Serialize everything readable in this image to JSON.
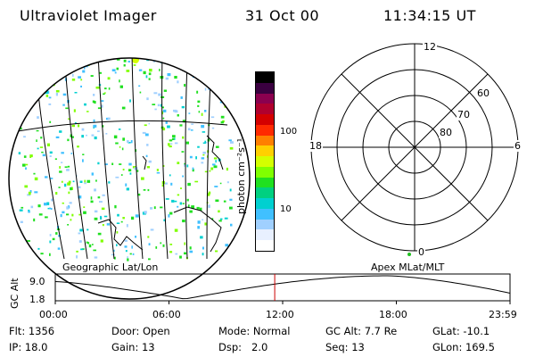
{
  "header": {
    "instrument": "Ultraviolet Imager",
    "date": "31 Oct 00",
    "time": "11:34:15 UT"
  },
  "colorbar": {
    "unit_label": "photon cm⁻²s⁻¹",
    "ticks": [
      "100",
      "10"
    ],
    "colors": [
      "#000000",
      "#3a0040",
      "#8b004f",
      "#b0002e",
      "#d40000",
      "#ff2a00",
      "#ff8000",
      "#ffd000",
      "#d4ff00",
      "#80ff00",
      "#20e020",
      "#00d080",
      "#00d0d0",
      "#40c0ff",
      "#a0d0ff",
      "#e8f0ff",
      "#ffffff"
    ]
  },
  "map_panel": {
    "caption": "Geographic Lat/Lon"
  },
  "polar_panel": {
    "caption": "Apex MLat/MLT",
    "mlt_labels": {
      "top": "12",
      "bottom": "0",
      "left": "18",
      "right": "6"
    },
    "lat_labels": [
      "60",
      "70",
      "80"
    ]
  },
  "altitude_plot": {
    "ylabel": "GC Alt",
    "yticks": [
      "9.0",
      "1.8"
    ],
    "xticks": [
      "00:00",
      "06:00",
      "12:00",
      "18:00",
      "23:59"
    ],
    "current_time_color": "#cc0000"
  },
  "status": {
    "flt_label": "Flt:",
    "flt_value": "1356",
    "ip_label": "IP:",
    "ip_value": "18.0",
    "door_label": "Door:",
    "door_value": "Open",
    "gain_label": "Gain:",
    "gain_value": "13",
    "mode_label": "Mode:",
    "mode_value": "Normal",
    "dsp_label": "Dsp:",
    "dsp_value": "2.0",
    "gcalt_label": "GC Alt:",
    "gcalt_value": "7.7 Re",
    "seq_label": "Seq:",
    "seq_value": "13",
    "glat_label": "GLat:",
    "glat_value": "-10.1",
    "glon_label": "GLon:",
    "glon_value": "169.5"
  }
}
